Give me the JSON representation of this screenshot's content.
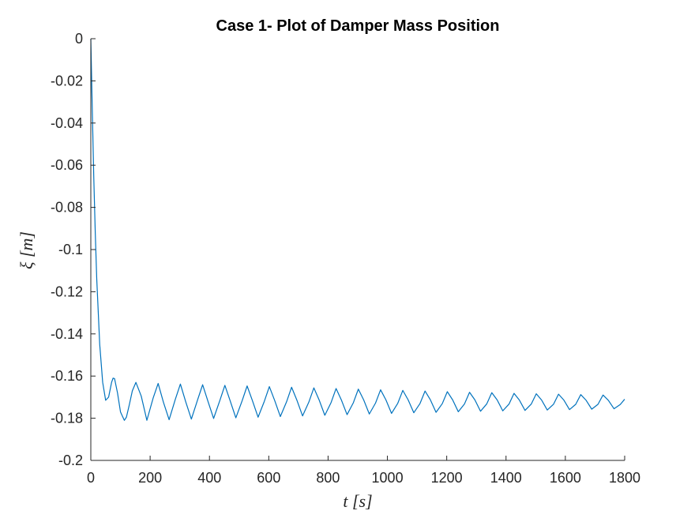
{
  "chart_data": {
    "type": "line",
    "title": "Case 1- Plot of Damper Mass Position",
    "xlabel": "t [s]",
    "ylabel": "ξ [m]",
    "xlim": [
      0,
      1800
    ],
    "ylim": [
      -0.2,
      0
    ],
    "xticks": [
      0,
      200,
      400,
      600,
      800,
      1000,
      1200,
      1400,
      1600,
      1800
    ],
    "xtick_labels": [
      "0",
      "200",
      "400",
      "600",
      "800",
      "1000",
      "1200",
      "1400",
      "1600",
      "1800"
    ],
    "yticks": [
      0,
      -0.02,
      -0.04,
      -0.06,
      -0.08,
      -0.1,
      -0.12,
      -0.14,
      -0.16,
      -0.18,
      -0.2
    ],
    "ytick_labels": [
      "0",
      "-0.02",
      "-0.04",
      "-0.06",
      "-0.08",
      "-0.1",
      "-0.12",
      "-0.14",
      "-0.16",
      "-0.18",
      "-0.2"
    ],
    "grid": false,
    "line_color": "#0072BD",
    "series": [
      {
        "x": [
          0,
          5,
          10,
          15,
          20,
          30,
          40,
          50,
          60,
          70,
          75,
          80,
          90,
          100,
          113,
          120,
          130,
          140,
          152,
          170,
          189,
          210,
          227,
          245,
          264,
          285,
          302,
          320,
          339,
          360,
          377,
          395,
          414,
          435,
          452,
          470,
          489,
          510,
          527,
          545,
          564,
          585,
          602,
          620,
          639,
          660,
          677,
          695,
          714,
          735,
          752,
          770,
          789,
          810,
          827,
          845,
          864,
          885,
          902,
          920,
          939,
          960,
          977,
          995,
          1014,
          1035,
          1052,
          1070,
          1089,
          1110,
          1127,
          1145,
          1164,
          1185,
          1202,
          1220,
          1239,
          1260,
          1277,
          1295,
          1314,
          1335,
          1352,
          1370,
          1389,
          1410,
          1427,
          1445,
          1464,
          1485,
          1502,
          1520,
          1539,
          1560,
          1577,
          1595,
          1614,
          1635,
          1652,
          1670,
          1689,
          1710,
          1727,
          1745,
          1764,
          1785,
          1800
        ],
        "y": [
          0,
          -0.034,
          -0.066,
          -0.092,
          -0.114,
          -0.145,
          -0.163,
          -0.1715,
          -0.17,
          -0.163,
          -0.161,
          -0.1612,
          -0.168,
          -0.177,
          -0.181,
          -0.1795,
          -0.1735,
          -0.167,
          -0.163,
          -0.1695,
          -0.181,
          -0.1705,
          -0.1635,
          -0.1725,
          -0.1807,
          -0.171,
          -0.1638,
          -0.1722,
          -0.1804,
          -0.1713,
          -0.1641,
          -0.172,
          -0.1801,
          -0.1716,
          -0.1644,
          -0.1718,
          -0.1798,
          -0.1718,
          -0.1647,
          -0.1717,
          -0.1795,
          -0.172,
          -0.165,
          -0.1716,
          -0.1792,
          -0.1722,
          -0.1653,
          -0.1715,
          -0.1789,
          -0.1724,
          -0.1656,
          -0.1714,
          -0.1786,
          -0.1726,
          -0.1659,
          -0.1714,
          -0.1783,
          -0.1727,
          -0.1662,
          -0.1713,
          -0.178,
          -0.1728,
          -0.1665,
          -0.1713,
          -0.1777,
          -0.1729,
          -0.1668,
          -0.1713,
          -0.1774,
          -0.173,
          -0.1671,
          -0.1713,
          -0.1772,
          -0.1731,
          -0.1674,
          -0.1713,
          -0.1769,
          -0.1732,
          -0.1677,
          -0.1713,
          -0.1767,
          -0.1732,
          -0.1679,
          -0.1713,
          -0.1765,
          -0.1733,
          -0.1682,
          -0.1714,
          -0.1763,
          -0.1733,
          -0.1684,
          -0.1714,
          -0.1761,
          -0.1734,
          -0.1686,
          -0.1714,
          -0.1759,
          -0.1734,
          -0.1688,
          -0.1715,
          -0.1757,
          -0.1734,
          -0.169,
          -0.1715,
          -0.1755,
          -0.1735,
          -0.171
        ]
      }
    ]
  }
}
